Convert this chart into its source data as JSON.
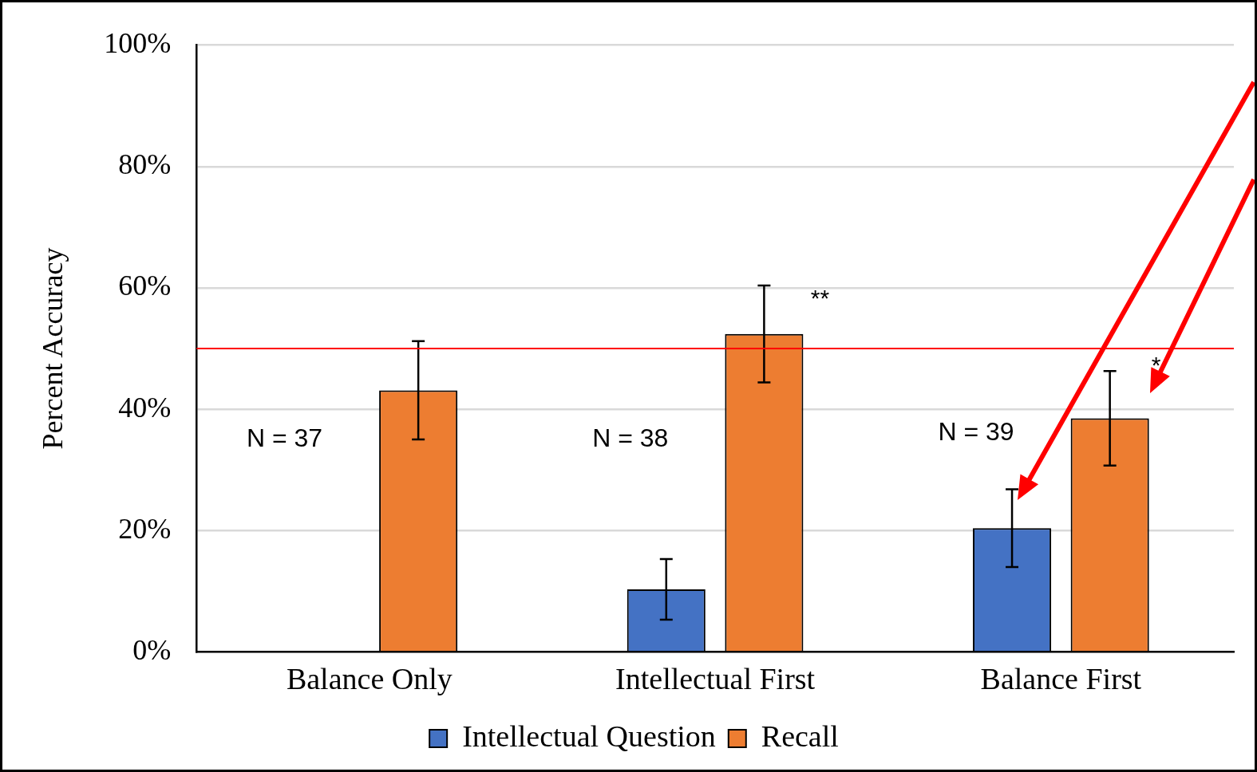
{
  "chart_data": {
    "type": "bar",
    "ylabel": "Percent Accuracy",
    "categories": [
      "Balance Only",
      "Intellectual First",
      "Balance First"
    ],
    "series": [
      {
        "name": "Intellectual Question",
        "color": "#4472c4",
        "values": [
          null,
          10.3,
          20.4
        ],
        "errors": [
          null,
          5,
          6.4
        ]
      },
      {
        "name": "Recall",
        "color": "#ed7d31",
        "values": [
          43.1,
          52.4,
          38.5
        ],
        "errors": [
          8.1,
          8,
          7.8
        ]
      }
    ],
    "ylim": [
      0,
      100
    ],
    "yticks": [
      {
        "value": 0,
        "label": "0%"
      },
      {
        "value": 20,
        "label": "20%"
      },
      {
        "value": 40,
        "label": "40%"
      },
      {
        "value": 60,
        "label": "60%"
      },
      {
        "value": 80,
        "label": "80%"
      },
      {
        "value": 100,
        "label": "100%"
      }
    ],
    "grid": "y",
    "legend": "bottom",
    "ref_lines": [
      {
        "axis": "y",
        "value": 50,
        "color": "#ff0000"
      }
    ],
    "annotations": [
      "N = 37",
      "N = 38",
      "N = 39",
      "**",
      "*"
    ]
  }
}
